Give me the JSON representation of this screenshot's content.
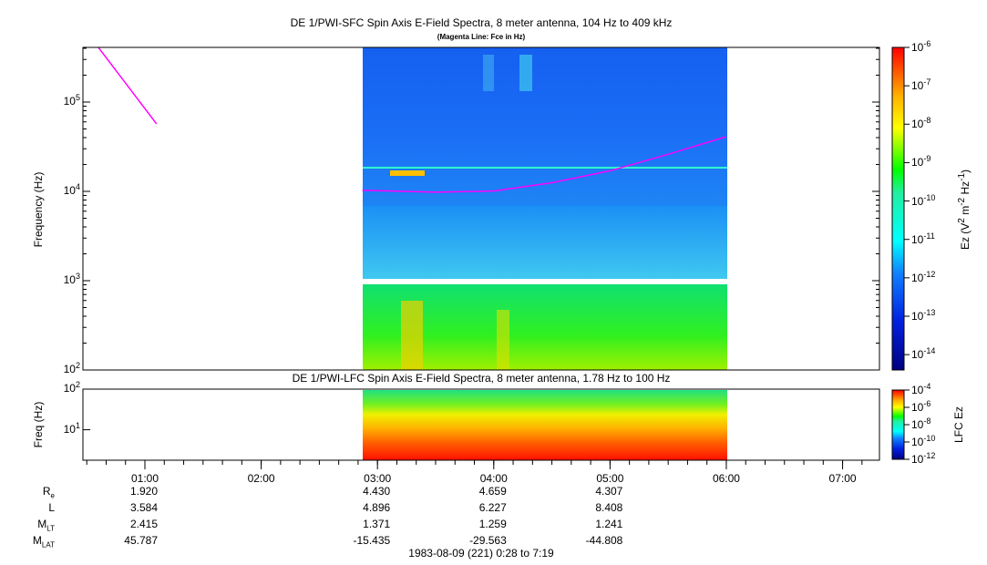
{
  "chart_data": [
    {
      "type": "heatmap",
      "title": "DE 1/PWI-SFC  Spin Axis E-Field Spectra, 8 meter antenna, 104 Hz to 409 kHz",
      "subtitle": "(Magenta Line: Fce in Hz)",
      "ylabel": "Frequency (Hz)",
      "yscale": "log",
      "ylim": [
        100,
        409000
      ],
      "yticks": [
        {
          "base": "10",
          "exp": "2"
        },
        {
          "base": "10",
          "exp": "3"
        },
        {
          "base": "10",
          "exp": "4"
        },
        {
          "base": "10",
          "exp": "5"
        }
      ],
      "data_time_range_hours": [
        2.87,
        6.0
      ],
      "fce_line": {
        "name": "Fce",
        "color": "#ff00ff",
        "segments": [
          [
            [
              0.6,
              409000
            ],
            [
              1.1,
              57000
            ]
          ],
          [
            [
              2.87,
              10300
            ],
            [
              3.5,
              9800
            ],
            [
              4.0,
              10100
            ],
            [
              4.5,
              12500
            ],
            [
              5.0,
              17000
            ],
            [
              5.5,
              26000
            ],
            [
              6.0,
              41000
            ]
          ]
        ]
      },
      "colorbar": {
        "label": "Ez (V",
        "label_sup1": "2",
        "label_mid": " m",
        "label_sup2": "-2",
        "label_hz": " Hz",
        "label_sup3": "-1",
        "label_end": ")",
        "ticks": [
          "-6",
          "-7",
          "-8",
          "-9",
          "-10",
          "-11",
          "-12",
          "-13",
          "-14"
        ],
        "range": [
          -14.4,
          -6
        ]
      }
    },
    {
      "type": "heatmap",
      "title": "DE 1/PWI-LFC  Spin Axis E-Field Spectra, 8 meter antenna, 1.78 Hz to 100 Hz",
      "ylabel": "Freq (Hz)",
      "yscale": "log",
      "ylim": [
        1.78,
        100
      ],
      "yticks": [
        {
          "base": "10",
          "exp": "1"
        },
        {
          "base": "10",
          "exp": "2"
        }
      ],
      "colorbar": {
        "label": "LFC Ez",
        "ticks": [
          "-4",
          "-6",
          "-8",
          "-10",
          "-12"
        ],
        "range": [
          -12,
          -4
        ]
      }
    }
  ],
  "xaxis": {
    "ticks": [
      "01:00",
      "02:00",
      "03:00",
      "04:00",
      "05:00",
      "06:00",
      "07:00"
    ],
    "range_hours": [
      0.467,
      7.317
    ]
  },
  "ephemeris": {
    "rows": [
      {
        "label": "R",
        "sub": "e",
        "values": [
          "1.920",
          "",
          "4.430",
          "4.659",
          "4.307"
        ]
      },
      {
        "label": "L",
        "sub": "",
        "values": [
          "3.584",
          "",
          "4.896",
          "6.227",
          "8.408"
        ]
      },
      {
        "label": "M",
        "sub": "LT",
        "values": [
          "2.415",
          "",
          "1.371",
          "1.259",
          "1.241"
        ]
      },
      {
        "label": "M",
        "sub": "LAT",
        "values": [
          "45.787",
          "",
          "-15.435",
          "-29.563",
          "-44.808"
        ]
      }
    ]
  },
  "footer": "1983-08-09 (221) 0:28 to 7:19"
}
